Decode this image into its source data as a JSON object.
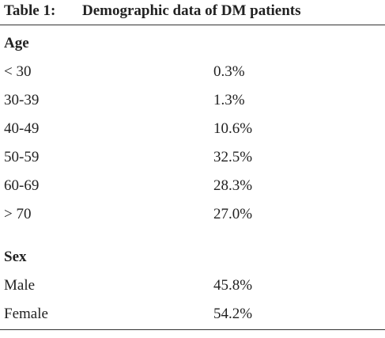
{
  "header": {
    "label": "Table 1:",
    "title": "Demographic data of DM patients"
  },
  "table": {
    "sections": [
      {
        "heading": "Age",
        "rows": [
          [
            "< 30",
            "0.3%"
          ],
          [
            "30-39",
            "1.3%"
          ],
          [
            "40-49",
            "10.6%"
          ],
          [
            "50-59",
            "32.5%"
          ],
          [
            "60-69",
            "28.3%"
          ],
          [
            "> 70",
            "27.0%"
          ]
        ]
      },
      {
        "heading": "Sex",
        "rows": [
          [
            "Male",
            "45.8%"
          ],
          [
            "Female",
            "54.2%"
          ]
        ]
      }
    ]
  }
}
